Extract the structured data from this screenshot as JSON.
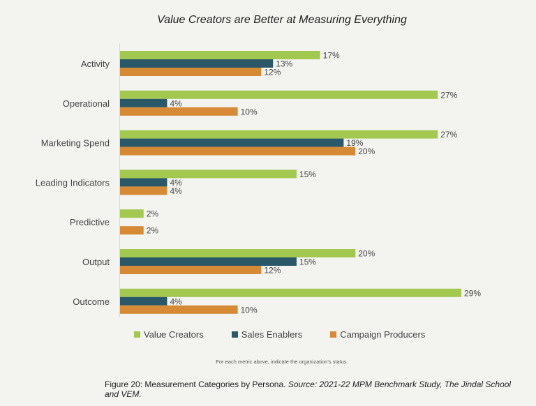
{
  "chart_data": {
    "type": "bar",
    "orientation": "horizontal",
    "title": "Value Creators are Better at Measuring Everything",
    "categories": [
      "Activity",
      "Operational",
      "Marketing Spend",
      "Leading Indicators",
      "Predictive",
      "Output",
      "Outcome"
    ],
    "series": [
      {
        "name": "Value Creators",
        "color": "#a3c850",
        "values": [
          17,
          27,
          27,
          15,
          2,
          20,
          29
        ]
      },
      {
        "name": "Sales Enablers",
        "color": "#2b5868",
        "values": [
          13,
          4,
          19,
          4,
          null,
          15,
          4
        ]
      },
      {
        "name": "Campaign Producers",
        "color": "#d68a36",
        "values": [
          12,
          10,
          20,
          4,
          2,
          12,
          10
        ]
      }
    ],
    "value_suffix": "%",
    "xlim": [
      0,
      29
    ],
    "grid": false,
    "legend_position": "bottom"
  },
  "note": "For each metric above, indicate the organization's status.",
  "caption": {
    "main": "Figure 20: Measurement Categories by Persona.",
    "source": "Source: 2021-22 MPM Benchmark Study, The Jindal School and VEM."
  }
}
